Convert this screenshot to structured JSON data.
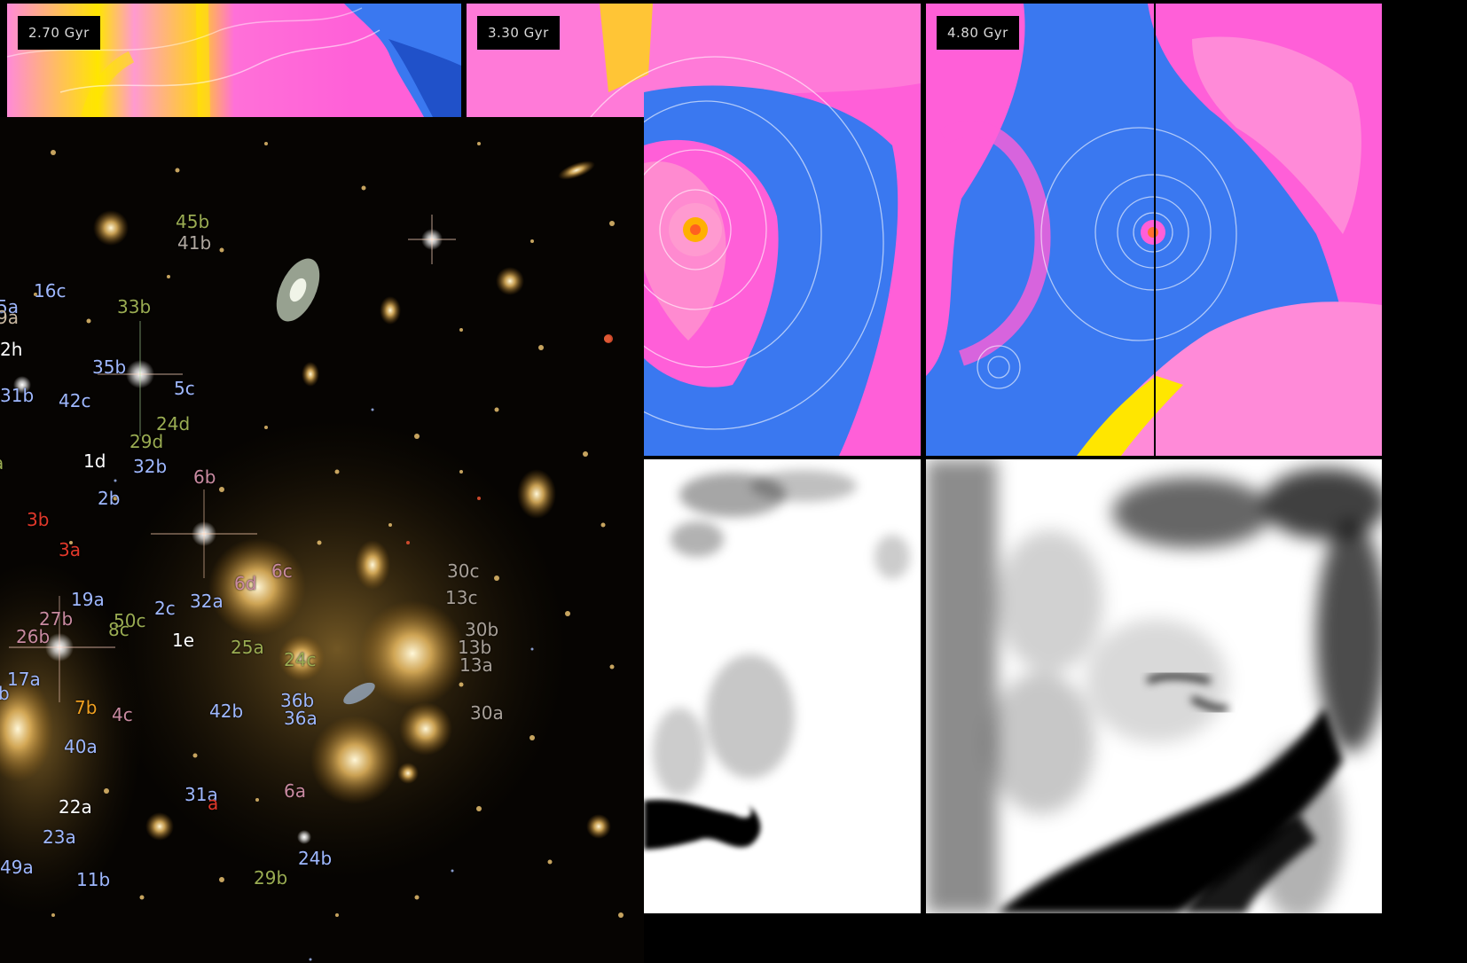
{
  "panels": {
    "t1": {
      "label": "2.70 Gyr"
    },
    "t2": {
      "label": "3.30 Gyr"
    },
    "t3": {
      "label": "4.80 Gyr"
    }
  },
  "colors": {
    "magenta": "#ff5fd8",
    "pink": "#ff8ad8",
    "blue": "#3a78f0",
    "deep_blue": "#1540b8",
    "yellow": "#ffe600",
    "label_blue": "#9fb8ff",
    "label_green": "#9aac52",
    "label_white": "#ffffff",
    "label_orange": "#f0a020",
    "label_red": "#e0382a",
    "label_pink": "#c98aa0"
  },
  "cluster_labels": [
    "45b",
    "41b",
    "16c",
    "33b",
    "5a",
    "9a",
    "2h",
    "35b",
    "5c",
    "31b",
    "42c",
    "24d",
    "29d",
    "1d",
    "32b",
    "6b",
    "a",
    "2b",
    "3b",
    "3a",
    "6d",
    "6c",
    "30c",
    "13c",
    "19a",
    "27b",
    "2c",
    "32a",
    "50c",
    "8c",
    "1e",
    "26b",
    "30b",
    "13b",
    "13a",
    "25a",
    "24c",
    "17a",
    "b",
    "7b",
    "4c",
    "42b",
    "36b",
    "36a",
    "30a",
    "40a",
    "31a",
    "6a",
    "22a",
    "23a",
    "24b",
    "49a",
    "11b",
    "29b",
    "a"
  ]
}
